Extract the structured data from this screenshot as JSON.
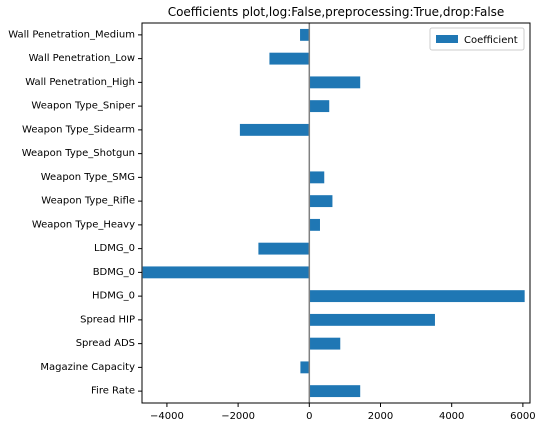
{
  "chart_data": {
    "type": "bar",
    "orientation": "horizontal",
    "title": "Coefficients plot,log:False,preprocessing:True,drop:False",
    "xlabel": "",
    "ylabel": "",
    "xlim": [
      -4700,
      6200
    ],
    "xticks": [
      -4000,
      -2000,
      0,
      2000,
      4000,
      6000
    ],
    "xtick_labels": [
      "−4000",
      "−2000",
      "0",
      "2000",
      "4000",
      "6000"
    ],
    "categories": [
      "Fire Rate",
      "Magazine Capacity",
      "Spread ADS",
      "Spread HIP",
      "HDMG_0",
      "BDMG_0",
      "LDMG_0",
      "Weapon Type_Heavy",
      "Weapon Type_Rifle",
      "Weapon Type_SMG",
      "Weapon Type_Shotgun",
      "Weapon Type_Sidearm",
      "Weapon Type_Sniper",
      "Wall Penetration_High",
      "Wall Penetration_Low",
      "Wall Penetration_Medium"
    ],
    "series": [
      {
        "name": "Coefficient",
        "color": "#1f77b4",
        "values": [
          1430,
          -250,
          870,
          3530,
          6050,
          -4680,
          -1430,
          300,
          650,
          420,
          0,
          -1950,
          560,
          1430,
          -1120,
          -260
        ]
      }
    ],
    "zero_line_color": "#808080",
    "grid": false,
    "legend": {
      "position": "top-right",
      "entries": [
        "Coefficient"
      ]
    }
  }
}
